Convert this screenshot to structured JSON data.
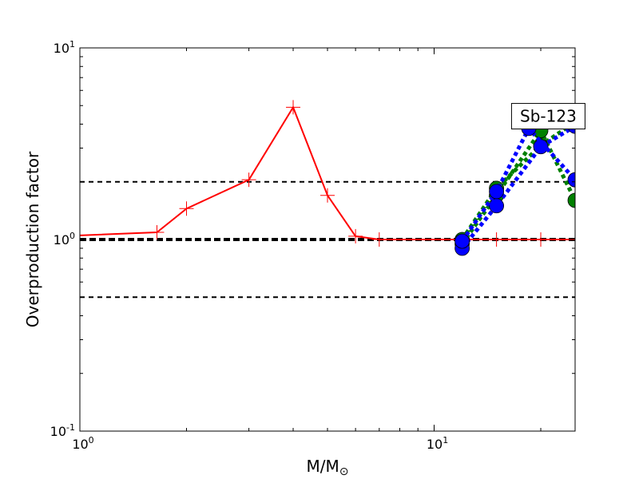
{
  "chart_data": {
    "type": "line",
    "xscale": "log",
    "yscale": "log",
    "xlim": [
      1,
      25
    ],
    "ylim": [
      0.1,
      10
    ],
    "xlabel": "M/M⊙",
    "ylabel": "Overproduction factor",
    "x_ticks": [
      {
        "value": 1,
        "base": "10",
        "exp": "0"
      },
      {
        "value": 10,
        "base": "10",
        "exp": "1"
      }
    ],
    "y_ticks": [
      {
        "value": 0.1,
        "base": "10",
        "exp": "-1"
      },
      {
        "value": 1,
        "base": "10",
        "exp": "0"
      },
      {
        "value": 10,
        "base": "10",
        "exp": "1"
      }
    ],
    "annotation": {
      "text": "Sb-123",
      "x": 21.0,
      "y": 4.4
    },
    "reference_lines": [
      {
        "y": 0.5,
        "style": "dashed",
        "width": 2
      },
      {
        "y": 1.0,
        "style": "dashed",
        "width": 4
      },
      {
        "y": 2.0,
        "style": "dashed",
        "width": 2
      }
    ],
    "series": [
      {
        "color": "#ff0000",
        "style": "solid",
        "marker": "plus",
        "x": [
          1.0,
          1.65,
          2.0,
          3.0,
          4.0,
          5.0,
          6.0,
          7.0,
          15.0,
          20.0,
          25.0
        ],
        "y": [
          1.05,
          1.09,
          1.45,
          2.05,
          4.9,
          1.7,
          1.04,
          1.0,
          1.0,
          1.0,
          1.0
        ]
      },
      {
        "color": "#008000",
        "style": "dotted",
        "marker": "circle",
        "x": [
          12.0,
          15.0,
          20.0,
          25.0
        ],
        "y": [
          1.0,
          1.85,
          3.1,
          4.1
        ]
      },
      {
        "color": "#008000",
        "style": "dotted",
        "marker": "circle",
        "x": [
          12.0,
          15.0,
          20.0,
          25.0
        ],
        "y": [
          0.95,
          1.7,
          3.7,
          1.6
        ]
      },
      {
        "color": "#0000ff",
        "style": "dotted",
        "marker": "circle",
        "x": [
          12.0,
          15.0,
          20.0,
          25.0
        ],
        "y": [
          0.9,
          1.5,
          3.05,
          3.9
        ]
      },
      {
        "color": "#0000ff",
        "style": "dotted",
        "marker": "circle",
        "x": [
          12.0,
          15.0,
          18.5,
          25.0
        ],
        "y": [
          0.98,
          1.78,
          3.8,
          2.05
        ]
      }
    ],
    "grid": false,
    "legend": "none"
  }
}
